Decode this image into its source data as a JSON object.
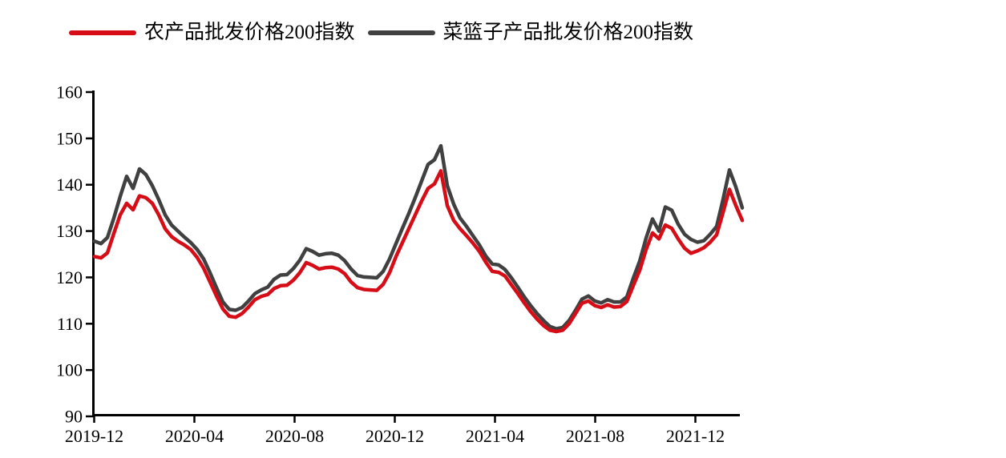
{
  "page": {
    "background": "#ffffff"
  },
  "legend": {
    "items": [
      {
        "label": "农产品批发价格200指数",
        "color": "#d60d17"
      },
      {
        "label": "菜篮子产品批发价格200指数",
        "color": "#404040"
      }
    ]
  },
  "chart_data": {
    "type": "line",
    "title": "",
    "xlabel": "",
    "ylabel": "",
    "grid": false,
    "legend_position": "top",
    "axis_color": "#000000",
    "tick_font_color": "#000000",
    "y_axis": {
      "min": 90,
      "max": 160,
      "tick_step": 10,
      "ticks": [
        90,
        100,
        110,
        120,
        130,
        140,
        150,
        160
      ]
    },
    "x_axis": {
      "tick_labels": [
        "2019-12",
        "2020-04",
        "2020-08",
        "2020-12",
        "2021-04",
        "2021-08",
        "2021-12"
      ],
      "tick_interval_months": 4,
      "start_month": "2019-12",
      "end_month_approx": "2022-01",
      "sampling_note": "values sampled at ~8-day (weekly) intervals from 2019-12 through late 2022-01"
    },
    "series": [
      {
        "name": "农产品批发价格200指数",
        "color": "#d60d17",
        "values": [
          124.5,
          124.2,
          125.3,
          129.5,
          133.5,
          136.0,
          134.6,
          137.6,
          137.2,
          136.0,
          133.5,
          130.5,
          128.8,
          127.8,
          127.0,
          126.0,
          124.3,
          122.0,
          119.0,
          116.0,
          113.2,
          111.6,
          111.4,
          112.2,
          113.6,
          115.2,
          115.9,
          116.3,
          117.6,
          118.2,
          118.3,
          119.4,
          121.0,
          123.2,
          122.6,
          121.8,
          122.1,
          122.2,
          121.8,
          120.8,
          119.0,
          117.8,
          117.4,
          117.3,
          117.2,
          118.5,
          121.0,
          124.5,
          127.5,
          130.5,
          133.5,
          136.5,
          139.2,
          140.2,
          143.0,
          135.5,
          132.3,
          130.5,
          129.0,
          127.4,
          125.6,
          123.3,
          121.3,
          121.1,
          120.3,
          118.4,
          116.5,
          114.5,
          112.6,
          111.0,
          109.6,
          108.6,
          108.3,
          108.6,
          110.0,
          112.2,
          114.4,
          114.9,
          113.9,
          113.5,
          114.1,
          113.6,
          113.7,
          114.8,
          118.2,
          121.5,
          126.0,
          129.6,
          128.3,
          131.3,
          130.6,
          128.3,
          126.3,
          125.2,
          125.7,
          126.4,
          127.6,
          129.2,
          134.0,
          139.0,
          135.5,
          132.3
        ]
      },
      {
        "name": "菜篮子产品批发价格200指数",
        "color": "#404040",
        "values": [
          127.8,
          127.3,
          128.6,
          132.8,
          137.5,
          141.8,
          139.2,
          143.4,
          142.2,
          139.8,
          136.8,
          133.5,
          131.3,
          130.0,
          128.7,
          127.5,
          126.0,
          124.0,
          121.0,
          117.8,
          114.7,
          113.1,
          112.9,
          113.5,
          114.9,
          116.5,
          117.3,
          117.9,
          119.6,
          120.5,
          120.6,
          121.9,
          123.7,
          126.2,
          125.6,
          124.8,
          125.1,
          125.2,
          124.8,
          123.6,
          121.8,
          120.4,
          120.1,
          120.0,
          119.9,
          121.3,
          124.0,
          127.3,
          130.6,
          133.8,
          137.2,
          140.8,
          144.4,
          145.4,
          148.4,
          139.8,
          135.8,
          132.8,
          131.0,
          129.0,
          127.0,
          124.6,
          122.9,
          122.7,
          121.7,
          119.9,
          117.9,
          115.8,
          113.9,
          112.2,
          110.7,
          109.4,
          108.9,
          109.2,
          110.7,
          112.9,
          115.3,
          116.0,
          114.9,
          114.5,
          115.2,
          114.7,
          114.7,
          115.8,
          119.8,
          123.5,
          128.5,
          132.6,
          130.0,
          135.2,
          134.5,
          131.5,
          129.3,
          128.2,
          127.6,
          127.9,
          129.3,
          131.0,
          136.8,
          143.2,
          139.5,
          135.0
        ]
      }
    ]
  }
}
